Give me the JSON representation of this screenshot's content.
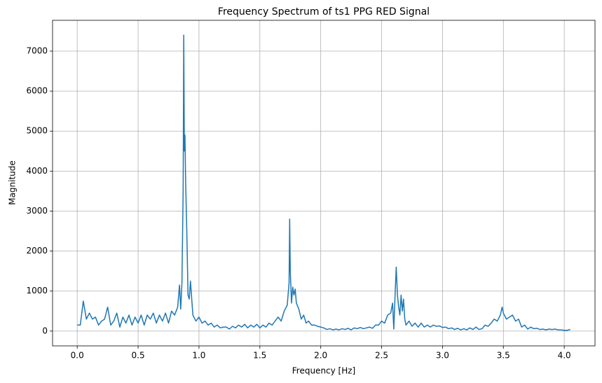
{
  "chart_data": {
    "type": "line",
    "title": "Frequency Spectrum of ts1 PPG RED Signal",
    "x_label": "Frequency [Hz]",
    "y_label": "Magnitude",
    "color": "#1f77b4",
    "grid": true,
    "xlim": [
      -0.2025,
      4.2525
    ],
    "ylim": [
      -370,
      7770
    ],
    "xticks": [
      {
        "value": 0,
        "label": "0.0"
      },
      0.5,
      {
        "value": 1,
        "label": "1.0"
      },
      1.5,
      {
        "value": 2,
        "label": "2.0"
      },
      2.5,
      {
        "value": 3,
        "label": "3.0"
      },
      3.5,
      {
        "value": 4,
        "label": "4.0"
      }
    ],
    "yticks": [
      0,
      1000,
      2000,
      3000,
      4000,
      5000,
      6000,
      7000
    ],
    "x": [
      0.0,
      0.025,
      0.05,
      0.075,
      0.1,
      0.125,
      0.15,
      0.175,
      0.2,
      0.225,
      0.25,
      0.275,
      0.3,
      0.325,
      0.35,
      0.375,
      0.4,
      0.425,
      0.45,
      0.475,
      0.5,
      0.525,
      0.55,
      0.575,
      0.6,
      0.625,
      0.65,
      0.675,
      0.7,
      0.725,
      0.75,
      0.775,
      0.8,
      0.825,
      0.84,
      0.85,
      0.86,
      0.87,
      0.875,
      0.88,
      0.885,
      0.89,
      0.9,
      0.91,
      0.92,
      0.93,
      0.95,
      0.975,
      1.0,
      1.025,
      1.05,
      1.075,
      1.1,
      1.125,
      1.15,
      1.175,
      1.2,
      1.225,
      1.25,
      1.275,
      1.3,
      1.325,
      1.35,
      1.375,
      1.4,
      1.425,
      1.45,
      1.475,
      1.5,
      1.525,
      1.55,
      1.575,
      1.6,
      1.625,
      1.65,
      1.675,
      1.7,
      1.725,
      1.74,
      1.745,
      1.75,
      1.76,
      1.77,
      1.78,
      1.79,
      1.8,
      1.82,
      1.84,
      1.86,
      1.88,
      1.9,
      1.925,
      1.95,
      1.975,
      2.0,
      2.025,
      2.05,
      2.075,
      2.1,
      2.125,
      2.15,
      2.175,
      2.2,
      2.225,
      2.25,
      2.275,
      2.3,
      2.325,
      2.35,
      2.375,
      2.4,
      2.425,
      2.45,
      2.475,
      2.5,
      2.525,
      2.55,
      2.575,
      2.59,
      2.6,
      2.61,
      2.62,
      2.63,
      2.64,
      2.65,
      2.66,
      2.67,
      2.68,
      2.69,
      2.7,
      2.725,
      2.75,
      2.775,
      2.8,
      2.825,
      2.85,
      2.875,
      2.9,
      2.925,
      2.95,
      2.975,
      3.0,
      3.025,
      3.05,
      3.075,
      3.1,
      3.125,
      3.15,
      3.175,
      3.2,
      3.225,
      3.25,
      3.275,
      3.3,
      3.325,
      3.35,
      3.375,
      3.4,
      3.425,
      3.45,
      3.475,
      3.49,
      3.5,
      3.525,
      3.55,
      3.575,
      3.6,
      3.625,
      3.65,
      3.675,
      3.7,
      3.725,
      3.75,
      3.775,
      3.8,
      3.825,
      3.85,
      3.875,
      3.9,
      3.925,
      3.95,
      3.975,
      4.0,
      4.025,
      4.05
    ],
    "values": [
      150,
      150,
      750,
      300,
      450,
      300,
      350,
      150,
      250,
      300,
      600,
      150,
      250,
      450,
      100,
      350,
      200,
      400,
      150,
      350,
      200,
      400,
      150,
      400,
      300,
      450,
      200,
      400,
      250,
      450,
      200,
      500,
      400,
      600,
      1150,
      550,
      1200,
      3500,
      7400,
      4500,
      4900,
      3800,
      2500,
      900,
      800,
      1250,
      400,
      250,
      350,
      200,
      250,
      150,
      200,
      100,
      150,
      80,
      100,
      100,
      50,
      120,
      80,
      150,
      100,
      170,
      80,
      150,
      100,
      170,
      80,
      150,
      100,
      200,
      150,
      250,
      350,
      250,
      500,
      650,
      1200,
      2800,
      1500,
      700,
      1100,
      900,
      1050,
      700,
      550,
      300,
      400,
      200,
      250,
      150,
      150,
      120,
      100,
      80,
      40,
      60,
      30,
      50,
      30,
      60,
      40,
      70,
      30,
      80,
      60,
      90,
      60,
      80,
      100,
      70,
      150,
      150,
      250,
      200,
      400,
      450,
      700,
      50,
      850,
      1600,
      900,
      600,
      400,
      900,
      500,
      800,
      300,
      150,
      250,
      120,
      200,
      100,
      200,
      100,
      150,
      100,
      150,
      120,
      130,
      90,
      100,
      60,
      80,
      40,
      70,
      30,
      60,
      30,
      80,
      40,
      100,
      40,
      60,
      150,
      120,
      200,
      300,
      250,
      400,
      600,
      450,
      300,
      350,
      400,
      250,
      300,
      100,
      150,
      50,
      100,
      60,
      70,
      40,
      50,
      30,
      50,
      40,
      50,
      30,
      30,
      20,
      20,
      40
    ]
  }
}
